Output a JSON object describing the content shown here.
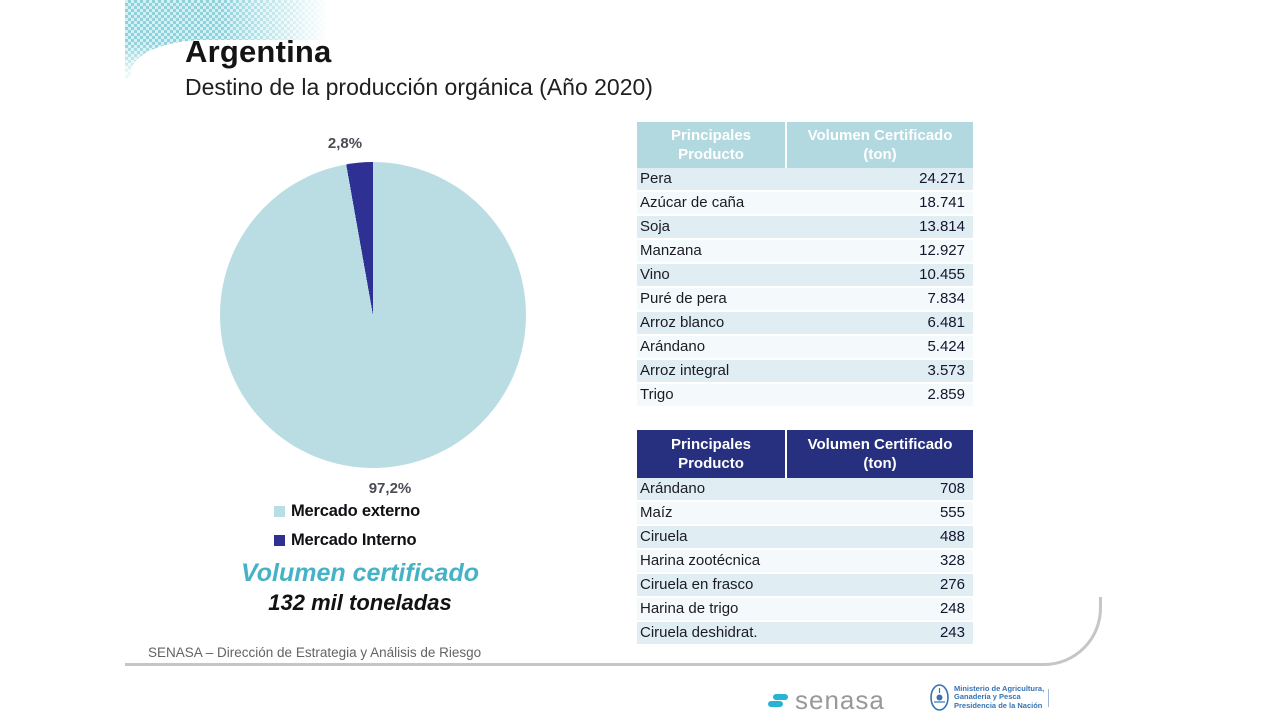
{
  "slide": {
    "title": "Argentina",
    "subtitle": "Destino de la producción orgánica (Año 2020)",
    "source_note": "SENASA – Dirección de Estrategia  y Análisis de Riesgo"
  },
  "chart_data": {
    "type": "pie",
    "title": "Destino de la producción orgánica (Año 2020)",
    "unit": "%",
    "slices": [
      {
        "label": "Mercado externo",
        "value": 97.2,
        "display": "97,2%",
        "color": "#b9dde3"
      },
      {
        "label": "Mercado Interno",
        "value": 2.8,
        "display": "2,8%",
        "color": "#2e3193"
      }
    ],
    "direction": "counterclockwise-from-top",
    "legend_position": "below-left"
  },
  "summary": {
    "heading": "Volumen certificado",
    "value": "132 mil toneladas"
  },
  "tables": [
    {
      "name": "mercado-externo-productos",
      "header_bg": "#b2d9e0",
      "headers": [
        "Principales Producto",
        "Volumen Certificado (ton)"
      ],
      "rows": [
        [
          "Pera",
          "24.271"
        ],
        [
          "Azúcar de caña",
          "18.741"
        ],
        [
          "Soja",
          "13.814"
        ],
        [
          "Manzana",
          "12.927"
        ],
        [
          "Vino",
          "10.455"
        ],
        [
          "Puré de pera",
          "7.834"
        ],
        [
          "Arroz blanco",
          "6.481"
        ],
        [
          "Arándano",
          "5.424"
        ],
        [
          "Arroz integral",
          "3.573"
        ],
        [
          "Trigo",
          "2.859"
        ]
      ]
    },
    {
      "name": "mercado-interno-productos",
      "header_bg": "#27307e",
      "headers": [
        "Principales Producto",
        "Volumen Certificado (ton)"
      ],
      "rows": [
        [
          "Arándano",
          "708"
        ],
        [
          "Maíz",
          "555"
        ],
        [
          "Ciruela",
          "488"
        ],
        [
          "Harina zootécnica",
          "328"
        ],
        [
          "Ciruela en frasco",
          "276"
        ],
        [
          "Harina de trigo",
          "248"
        ],
        [
          "Ciruela deshidrat.",
          "243"
        ]
      ]
    }
  ],
  "footer": {
    "senasa_logo_text": "senasa",
    "ministry_lines": [
      "Ministerio de Agricultura,",
      "Ganadería y Pesca",
      "Presidencia de la Nación"
    ]
  }
}
